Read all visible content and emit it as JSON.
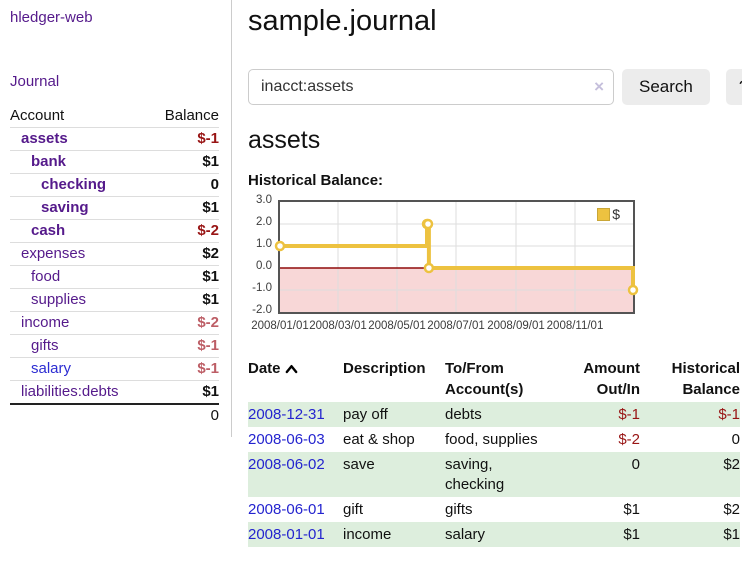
{
  "sidebar": {
    "app_title": "hledger-web",
    "journal_label": "Journal",
    "accounts": {
      "headers": [
        "Account",
        "Balance"
      ],
      "rows": [
        {
          "account": "assets",
          "indent": 1,
          "emph": true,
          "balance": "$-1",
          "neg": "strong"
        },
        {
          "account": "bank",
          "indent": 2,
          "emph": true,
          "balance": "$1"
        },
        {
          "account": "checking",
          "indent": 3,
          "emph": true,
          "balance": "0"
        },
        {
          "account": "saving",
          "indent": 3,
          "emph": true,
          "balance": "$1"
        },
        {
          "account": "cash",
          "indent": 2,
          "emph": true,
          "balance": "$-2",
          "neg": "strong"
        },
        {
          "account": "expenses",
          "indent": 1,
          "balance": "$2"
        },
        {
          "account": "food",
          "indent": 2,
          "balance": "$1"
        },
        {
          "account": "supplies",
          "indent": 2,
          "balance": "$1"
        },
        {
          "account": "income",
          "indent": 1,
          "balance": "$-2",
          "neg": "soft"
        },
        {
          "account": "gifts",
          "indent": 2,
          "balance": "$-1",
          "neg": "soft"
        },
        {
          "account": "salary",
          "indent": 2,
          "balance": "$-1",
          "neg": "soft",
          "link": "blue"
        },
        {
          "account": "liabilities:debts",
          "indent": 1,
          "balance": "$1"
        }
      ],
      "total": "0"
    }
  },
  "header": {
    "title": "sample.journal"
  },
  "search": {
    "query": "inacct:assets",
    "clear_icon": "×",
    "button_label": "Search",
    "help_label": "?"
  },
  "account": {
    "title": "assets"
  },
  "chart_data": {
    "type": "line",
    "title": "Historical Balance:",
    "step": "after",
    "series": [
      {
        "name": "$",
        "color": "#edc240",
        "points": [
          [
            "2008-01-01",
            1
          ],
          [
            "2008-06-01",
            2
          ],
          [
            "2008-06-02",
            2
          ],
          [
            "2008-06-03",
            0
          ],
          [
            "2008-12-31",
            -1
          ]
        ]
      }
    ],
    "x_range": [
      "2008-01-01",
      "2008-12-31"
    ],
    "x_ticks": [
      "2008/01/01",
      "2008/03/01",
      "2008/05/01",
      "2008/07/01",
      "2008/09/01",
      "2008/11/01"
    ],
    "y_ticks": [
      "3.0",
      "2.0",
      "1.0",
      "0.0",
      "-1.0",
      "-2.0"
    ],
    "ylim": [
      -2,
      3
    ],
    "grid": true,
    "grid_color": "#dddddd",
    "legend_position": "top-right",
    "negative_region_color": "#f8d7d7",
    "zero_line_color": "#8f0b0b",
    "marker": "open-circle"
  },
  "register": {
    "columns": [
      {
        "label": "Date",
        "sort": "ascending"
      },
      {
        "label": "Description"
      },
      {
        "label": "To/From Account(s)"
      },
      {
        "label": "Amount Out/In",
        "align": "right"
      },
      {
        "label": "Historical Balance",
        "align": "right"
      }
    ],
    "rows": [
      {
        "date": "2008-12-31",
        "description": "pay off",
        "accounts": "debts",
        "amount": "$-1",
        "amount_neg": true,
        "balance": "$-1",
        "balance_neg": true,
        "shaded": true
      },
      {
        "date": "2008-06-03",
        "description": "eat & shop",
        "accounts": "food, supplies",
        "amount": "$-2",
        "amount_neg": true,
        "balance": "0"
      },
      {
        "date": "2008-06-02",
        "description": "save",
        "accounts": "saving, checking",
        "amount": "0",
        "balance": "$2",
        "shaded": true
      },
      {
        "date": "2008-06-01",
        "description": "gift",
        "accounts": "gifts",
        "amount": "$1",
        "balance": "$2"
      },
      {
        "date": "2008-01-01",
        "description": "income",
        "accounts": "salary",
        "amount": "$1",
        "balance": "$1",
        "shaded": true
      }
    ]
  }
}
